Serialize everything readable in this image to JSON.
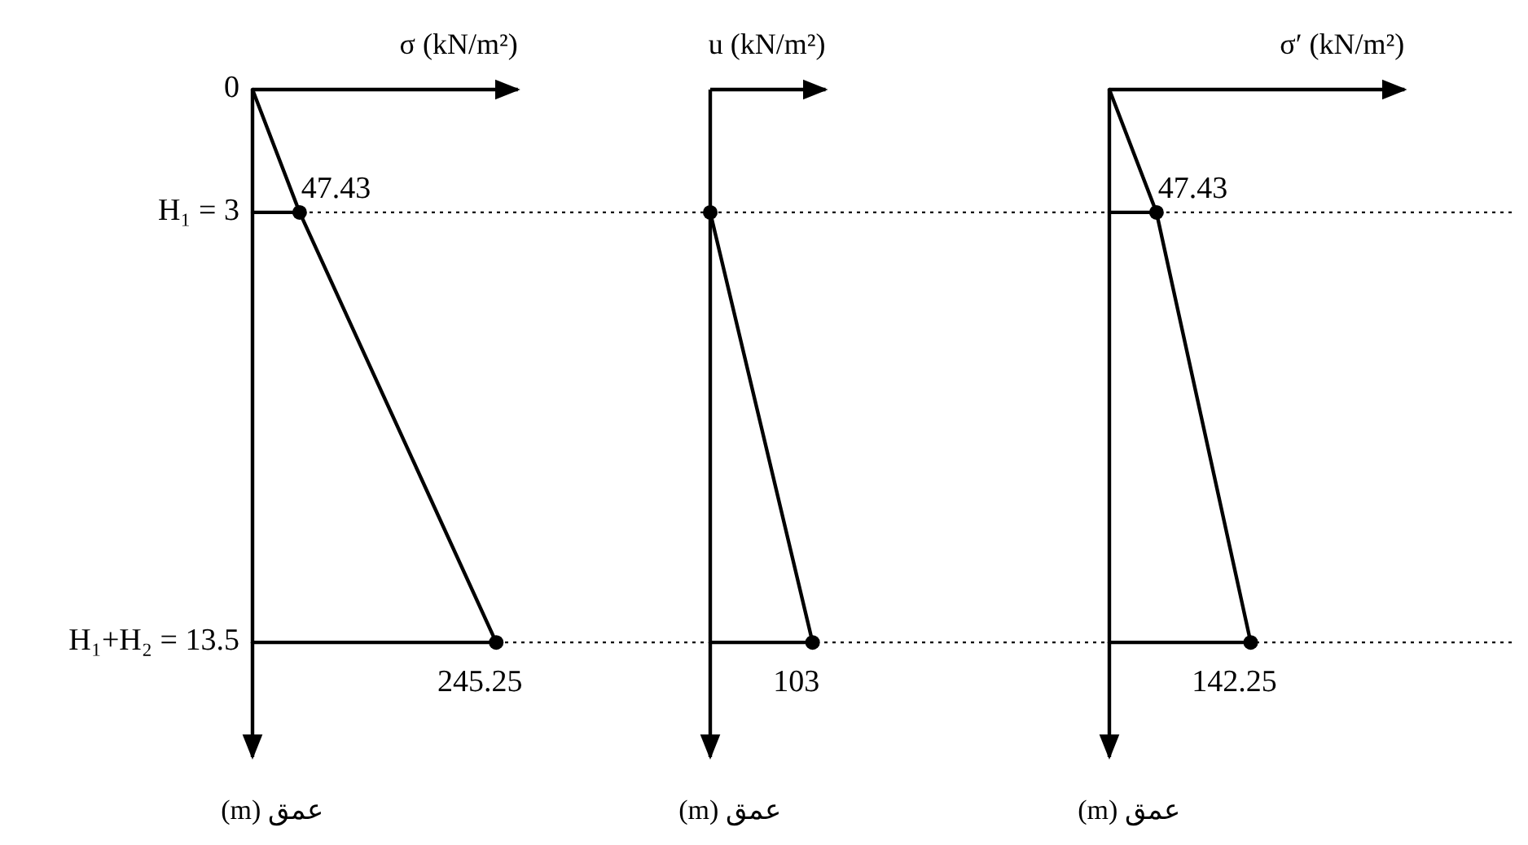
{
  "chart_data": [
    {
      "type": "line",
      "orientation": "horizontal",
      "xlabel": "σ (kN/m²)",
      "ylabel": "عمق (m)",
      "xlim": [
        0,
        267
      ],
      "ylim": [
        16.3,
        0
      ],
      "tick_labels": "y",
      "yticks": [
        0,
        {
          "value": 3,
          "label": "H₁ = 3"
        },
        {
          "value": 13.5,
          "label": "H₁+H₂ = 13.5"
        }
      ],
      "ref_lines": [
        {
          "axis": "y",
          "value": 3,
          "color": "#000000",
          "line_style": "dotted"
        },
        {
          "axis": "y",
          "value": 13.5,
          "color": "#000000",
          "line_style": "dotted"
        }
      ],
      "series": [
        {
          "type": "line",
          "color": "#000000",
          "marker": "none",
          "x": [
            0,
            3,
            13.5
          ],
          "values": [
            0,
            47.43,
            245.25
          ]
        },
        {
          "type": "line",
          "color": "#000000",
          "marker": "none",
          "x": [
            3,
            3
          ],
          "values": [
            0,
            47.43
          ]
        },
        {
          "type": "line",
          "color": "#000000",
          "marker": "none",
          "x": [
            13.5,
            13.5
          ],
          "values": [
            0,
            245.25
          ]
        },
        {
          "type": "scatter",
          "color": "#000000",
          "marker": "circle",
          "x": [
            3,
            13.5
          ],
          "values": [
            47.43,
            245.25
          ],
          "value_labels": [
            "47.43",
            "245.25"
          ]
        }
      ]
    },
    {
      "type": "line",
      "orientation": "horizontal",
      "xlabel": "u (kN/m²)",
      "ylabel": "عمق (m)",
      "xlim": [
        0,
        116
      ],
      "ylim": [
        16.3,
        0
      ],
      "tick_labels": false,
      "ref_lines": [
        {
          "axis": "y",
          "value": 3,
          "color": "#000000",
          "line_style": "dotted"
        },
        {
          "axis": "y",
          "value": 13.5,
          "color": "#000000",
          "line_style": "dotted"
        }
      ],
      "series": [
        {
          "type": "line",
          "color": "#000000",
          "marker": "none",
          "x": [
            3,
            13.5
          ],
          "values": [
            0,
            103
          ]
        },
        {
          "type": "line",
          "color": "#000000",
          "marker": "none",
          "x": [
            13.5,
            13.5
          ],
          "values": [
            0,
            103
          ]
        },
        {
          "type": "scatter",
          "color": "#000000",
          "marker": "circle",
          "x": [
            3,
            13.5
          ],
          "values": [
            0,
            103
          ],
          "value_labels": [
            null,
            "103"
          ]
        }
      ]
    },
    {
      "type": "line",
      "orientation": "horizontal",
      "xlabel": "σ′ (kN/m²)",
      "ylabel": "عمق (m)",
      "xlim": [
        0,
        297
      ],
      "ylim": [
        16.3,
        0
      ],
      "tick_labels": false,
      "ref_lines": [
        {
          "axis": "y",
          "value": 3,
          "color": "#000000",
          "line_style": "dotted"
        },
        {
          "axis": "y",
          "value": 13.5,
          "color": "#000000",
          "line_style": "dotted"
        }
      ],
      "series": [
        {
          "type": "line",
          "color": "#000000",
          "marker": "none",
          "x": [
            0,
            3,
            13.5
          ],
          "values": [
            0,
            47.43,
            142.25
          ]
        },
        {
          "type": "line",
          "color": "#000000",
          "marker": "none",
          "x": [
            3,
            3
          ],
          "values": [
            0,
            47.43
          ]
        },
        {
          "type": "line",
          "color": "#000000",
          "marker": "none",
          "x": [
            13.5,
            13.5
          ],
          "values": [
            0,
            142.25
          ]
        },
        {
          "type": "scatter",
          "color": "#000000",
          "marker": "circle",
          "x": [
            3,
            13.5
          ],
          "values": [
            47.43,
            142.25
          ],
          "value_labels": [
            "47.43",
            "142.25"
          ]
        }
      ]
    }
  ]
}
